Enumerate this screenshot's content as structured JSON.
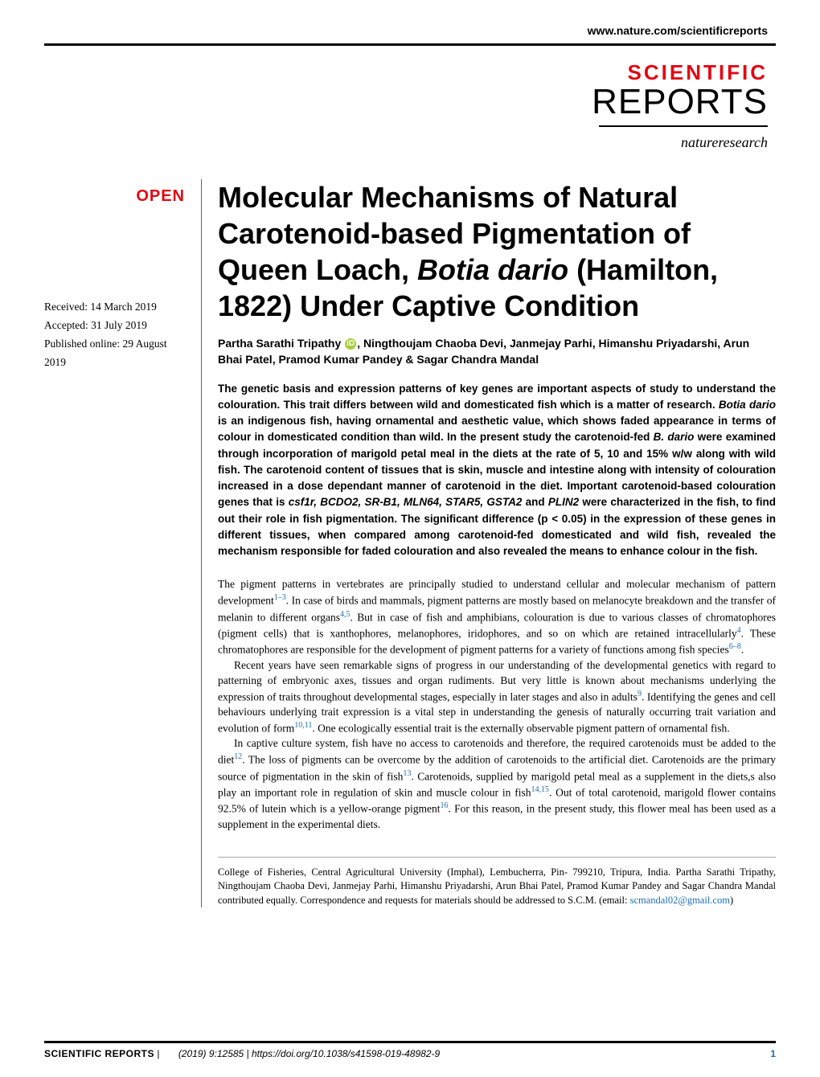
{
  "header": {
    "url": "www.nature.com/scientificreports",
    "logo_word1": "SCIENTIFIC",
    "logo_word2": "REPORTS",
    "logo_sub": "natureresearch",
    "accent_color": "#e30613"
  },
  "badge": {
    "open": "OPEN"
  },
  "dates": {
    "received": "Received: 14 March 2019",
    "accepted": "Accepted: 31 July 2019",
    "published": "Published online: 29 August 2019"
  },
  "title": {
    "line": "Molecular Mechanisms of Natural Carotenoid-based Pigmentation of Queen Loach, ",
    "species": "Botia dario",
    "tail": " (Hamilton, 1822) Under Captive Condition"
  },
  "authors": {
    "a1": "Partha Sarathi Tripathy",
    "rest": ", Ningthoujam Chaoba Devi, Janmejay Parhi, Himanshu Priyadarshi, Arun Bhai Patel, Pramod Kumar Pandey & Sagar Chandra Mandal"
  },
  "abstract": {
    "t1": "The genetic basis and expression patterns of key genes are important aspects of study to understand the colouration. This trait differs between wild and domesticated fish which is a matter of research. ",
    "species1": "Botia dario",
    "t2": " is an indigenous fish, having ornamental and aesthetic value, which shows faded appearance in terms of colour in domesticated condition than wild. In the present study the carotenoid-fed ",
    "species2": "B. dario",
    "t3": " were examined through incorporation of marigold petal meal in the diets at the rate of 5, 10 and 15% w/w along with wild fish. The carotenoid content of tissues that is skin, muscle and intestine along with intensity of colouration increased in a dose dependant manner of carotenoid in the diet. Important carotenoid-based colouration genes that is ",
    "genes": "csf1r, BCDO2, SR-B1, MLN64, STAR5, GSTA2",
    "t4": " and ",
    "gene_last": "PLIN2",
    "t5": " were characterized in the fish, to find out their role in fish pigmentation. The significant difference (p < 0.05) in the expression of these genes in different tissues, when compared among carotenoid-fed domesticated and wild fish, revealed the mechanism responsible for faded colouration and also revealed the means to enhance colour in the fish."
  },
  "body": {
    "p1a": "The pigment patterns in vertebrates are principally studied to understand cellular and molecular mechanism of pattern development",
    "p1r1": "1–3",
    "p1b": ". In case of birds and mammals, pigment patterns are mostly based on melanocyte breakdown and the transfer of melanin to different organs",
    "p1r2": "4,5",
    "p1c": ". But in case of fish and amphibians, colouration is due to various classes of chromatophores (pigment cells) that is xanthophores, melanophores, iridophores, and so on which are retained intracellularly",
    "p1r3": "4",
    "p1d": ". These chromatophores are responsible for the development of pigment patterns for a variety of functions among fish species",
    "p1r4": "6–8",
    "p1e": ".",
    "p2a": "Recent years have seen remarkable signs of progress in our understanding of the developmental genetics with regard to patterning of embryonic axes, tissues and organ rudiments. But very little is known about mechanisms underlying the expression of traits throughout developmental stages, especially in later stages and also in adults",
    "p2r1": "9",
    "p2b": ". Identifying the genes and cell behaviours underlying trait expression is a vital step in understanding the genesis of naturally occurring trait variation and evolution of form",
    "p2r2": "10,11",
    "p2c": ". One ecologically essential trait is the externally observable pigment pattern of ornamental fish.",
    "p3a": "In captive culture system, fish have no access to carotenoids and therefore, the required carotenoids must be added to the diet",
    "p3r1": "12",
    "p3b": ". The loss of pigments can be overcome by the addition of carotenoids to the artificial diet. Carotenoids are the primary source of pigmentation in the skin of fish",
    "p3r2": "13",
    "p3c": ". Carotenoids, supplied by marigold petal meal as a supplement in the diets,s also play an important role in regulation of skin and muscle colour in fish",
    "p3r3": "14,15",
    "p3d": ". Out of total carotenoid, marigold flower contains 92.5% of lutein which is a yellow-orange pigment",
    "p3r4": "16",
    "p3e": ". For this reason, in the present study, this flower meal has been used as a supplement in the experimental diets."
  },
  "affiliation": {
    "text": "College of Fisheries, Central Agricultural University (Imphal), Lembucherra, Pin- 799210, Tripura, India. Partha Sarathi Tripathy, Ningthoujam Chaoba Devi, Janmejay Parhi, Himanshu Priyadarshi, Arun Bhai Patel, Pramod Kumar Pandey and Sagar Chandra Mandal contributed equally. Correspondence and requests for materials should be addressed to S.C.M. (email: ",
    "email": "scmandal02@gmail.com",
    "tail": ")"
  },
  "footer": {
    "journal": "SCIENTIFIC REPORTS",
    "sep": " | ",
    "citation": "(2019) 9:12585  | https://doi.org/10.1038/s41598-019-48982-9",
    "page": "1"
  },
  "colors": {
    "link": "#1a6db5",
    "accent": "#e30613",
    "text": "#000000",
    "background": "#ffffff"
  }
}
